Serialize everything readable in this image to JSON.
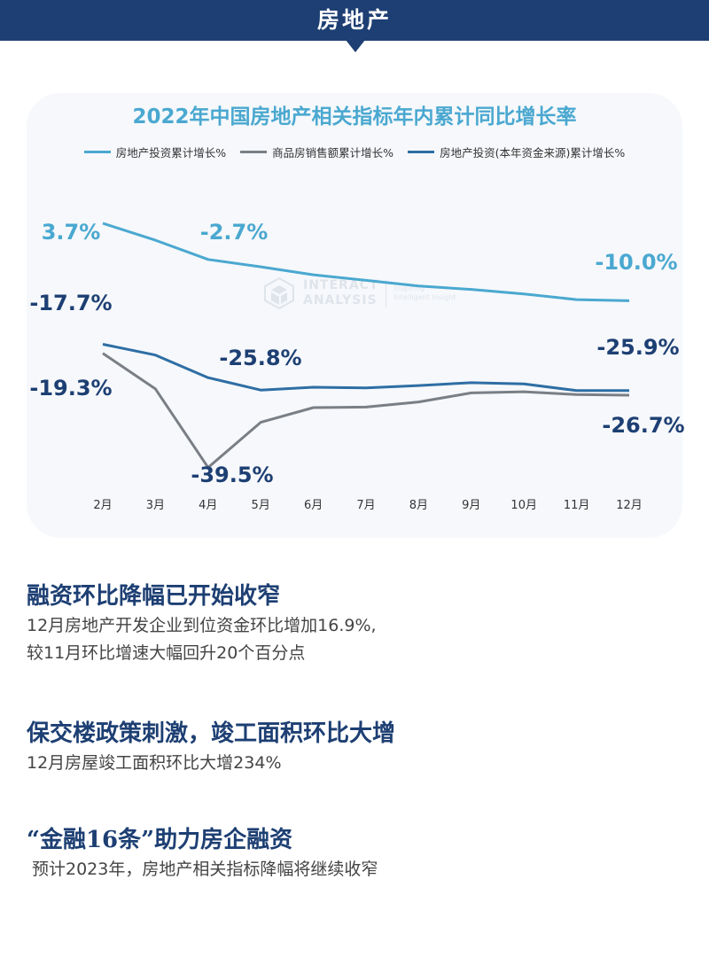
{
  "header": {
    "title": "房地产"
  },
  "chart_data": {
    "type": "line",
    "title": "2022年中国房地产相关指标年内累计同比增长率",
    "categories": [
      "2月",
      "3月",
      "4月",
      "5月",
      "6月",
      "7月",
      "8月",
      "9月",
      "10月",
      "11月",
      "12月"
    ],
    "legend_position": "top",
    "grid": false,
    "ylim": [
      -45,
      6
    ],
    "series": [
      {
        "name": "房地产投资累计增长%",
        "color": "#4aa8d0",
        "values": [
          3.7,
          0.7,
          -2.7,
          -4.0,
          -5.4,
          -6.4,
          -7.4,
          -8.0,
          -8.8,
          -9.8,
          -10.0
        ]
      },
      {
        "name": "商品房销售额累计增长%",
        "color": "#7a7f86",
        "values": [
          -19.3,
          -25.6,
          -39.5,
          -31.5,
          -28.9,
          -28.8,
          -27.9,
          -26.3,
          -26.1,
          -26.6,
          -26.7
        ]
      },
      {
        "name": "房地产投资(本年资金来源)累计增长%",
        "color": "#2e6ea4",
        "values": [
          -17.7,
          -19.6,
          -23.6,
          -25.8,
          -25.3,
          -25.4,
          -25.0,
          -24.5,
          -24.7,
          -25.9,
          -25.9
        ]
      }
    ],
    "annotations": [
      {
        "text": "3.7%",
        "color": "#4aa8d0"
      },
      {
        "text": "-2.7%",
        "color": "#4aa8d0"
      },
      {
        "text": "-10.0%",
        "color": "#4aa8d0"
      },
      {
        "text": "-17.7%",
        "color": "#1d3f73"
      },
      {
        "text": "-25.8%",
        "color": "#1d3f73"
      },
      {
        "text": "-25.9%",
        "color": "#1d3f73"
      },
      {
        "text": "-19.3%",
        "color": "#1d3f73"
      },
      {
        "text": "-39.5%",
        "color": "#1d3f73"
      },
      {
        "text": "-26.7%",
        "color": "#1d3f73"
      }
    ]
  },
  "watermark": {
    "line1": "INTERACT",
    "line2": "ANALYSIS",
    "tag1": "Inspiring",
    "tag2": "Intelligent Insight"
  },
  "sections": [
    {
      "heading": "融资环比降幅已开始收窄",
      "lines": [
        "12月房地产开发企业到位资金环比增加16.9%,",
        "较11月环比增速大幅回升20个百分点"
      ]
    },
    {
      "heading": "保交楼政策刺激，竣工面积环比大增",
      "lines": [
        "12月房屋竣工面积环比大增234%"
      ]
    },
    {
      "heading": "“金融16条”助力房企融资",
      "lines": [
        "预计2023年，房地产相关指标降幅将继续收窄"
      ]
    }
  ]
}
